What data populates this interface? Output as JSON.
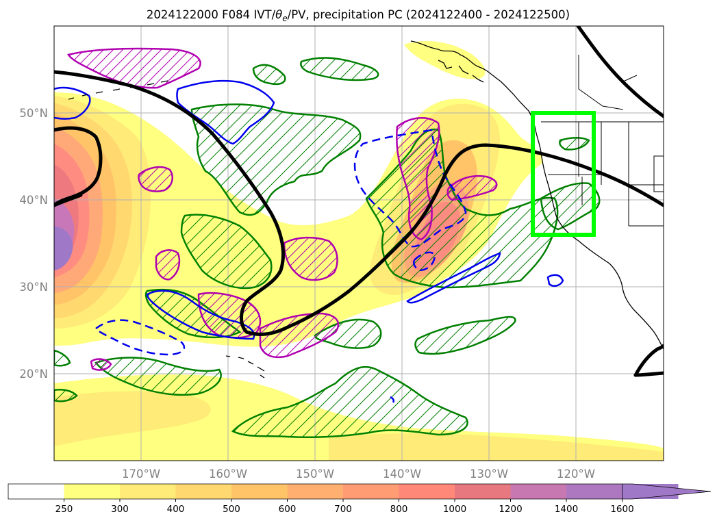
{
  "title": {
    "prefix": "2024122000 F084 IVT/",
    "theta": "θ",
    "theta_sub": "e",
    "suffix": "/PV, precipitation PC (2024122400 - 2024122500)"
  },
  "map": {
    "lat_labels": [
      "50°N",
      "40°N",
      "30°N",
      "20°N"
    ],
    "lon_labels": [
      "170°W",
      "160°W",
      "150°W",
      "140°W",
      "130°W",
      "120°W"
    ],
    "highlight_box_color": "#00ff00",
    "ivt_colors": [
      "#ffff80",
      "#ffeb78",
      "#ffd870",
      "#ffc468",
      "#ffa878",
      "#ff8c80",
      "#ee7a80",
      "#c878b8",
      "#a078c8"
    ],
    "contour_colors": {
      "theta_e": "#000000",
      "pv_positive": "#b000b0",
      "pv_negative": "#0000ee",
      "precip_pc": "#008000"
    }
  },
  "colorbar": {
    "labels": [
      "250",
      "300",
      "400",
      "500",
      "600",
      "700",
      "800",
      "1000",
      "1200",
      "1400",
      "1600"
    ],
    "colors": [
      "#ffffff",
      "#ffff80",
      "#ffeb78",
      "#ffd870",
      "#ffc468",
      "#ffb070",
      "#ff9c74",
      "#ff8878",
      "#e77880",
      "#c878b0",
      "#ae78c0",
      "#a078c8"
    ],
    "extend": "max"
  }
}
